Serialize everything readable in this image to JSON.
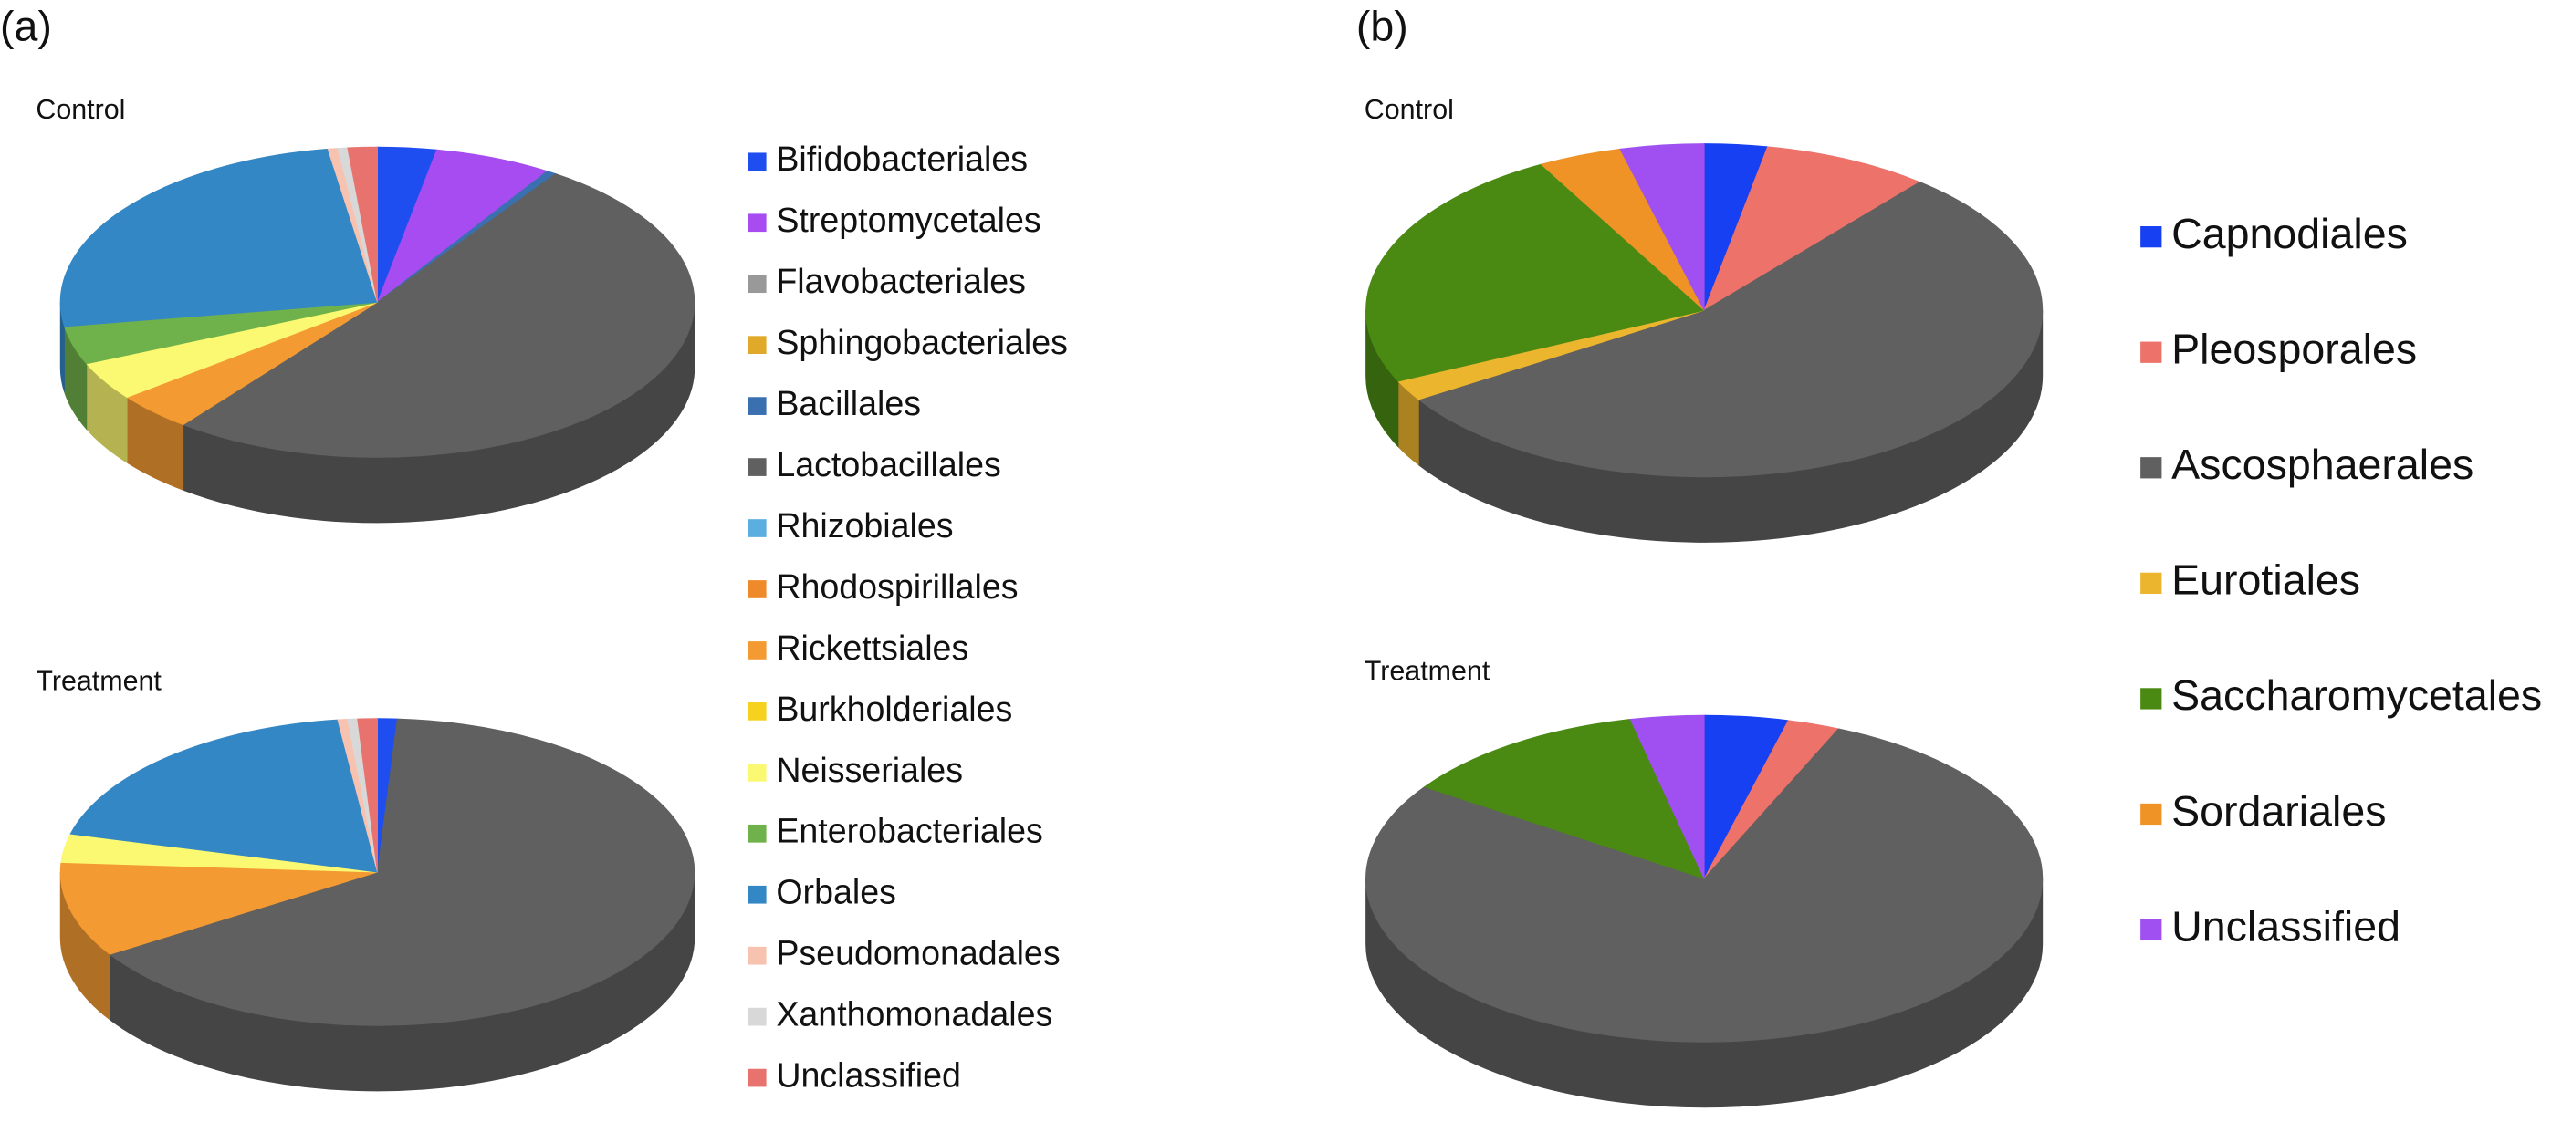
{
  "chart_data": [
    {
      "type": "pie",
      "panel_label": "(a)",
      "categories": [
        "Bifidobacteriales",
        "Streptomycetales",
        "Flavobacteriales",
        "Sphingobacteriales",
        "Bacillales",
        "Lactobacillales",
        "Rhizobiales",
        "Rhodospirillales",
        "Rickettsiales",
        "Burkholderiales",
        "Neisseriales",
        "Enterobacteriales",
        "Orbales",
        "Pseudomonadales",
        "Xanthomonadales",
        "Unclassified"
      ],
      "colors": [
        "#1f4ef0",
        "#a64cf0",
        "#999999",
        "#e0a92a",
        "#3a6fb0",
        "#606060",
        "#5aaee0",
        "#ef8a2a",
        "#f39a33",
        "#f5d21f",
        "#fbf871",
        "#6fb14a",
        "#3487c5",
        "#f7c3b0",
        "#d8d8d8",
        "#e8736e"
      ],
      "series": [
        {
          "name": "Control",
          "values": [
            3,
            6,
            0,
            0,
            0.5,
            51,
            0,
            0,
            4,
            0,
            4,
            4,
            25,
            0.5,
            0.5,
            1.5
          ]
        },
        {
          "name": "Treatment",
          "values": [
            1,
            0,
            0,
            0,
            0,
            65,
            0,
            0,
            10,
            0,
            3,
            0,
            19,
            0.5,
            0.5,
            1
          ]
        }
      ]
    },
    {
      "type": "pie",
      "panel_label": "(b)",
      "categories": [
        "Capnodiales",
        "Pleosporales",
        "Ascosphaerales",
        "Eurotiales",
        "Saccharomycetales",
        "Sordariales",
        "Unclassified"
      ],
      "colors": [
        "#1740f2",
        "#ec726a",
        "#606060",
        "#ecb52e",
        "#4a8a13",
        "#ef9327",
        "#a050f0"
      ],
      "series": [
        {
          "name": "Control",
          "values": [
            3,
            8,
            55,
            2,
            24,
            4,
            4
          ]
        },
        {
          "name": "Treatment",
          "values": [
            4,
            2.5,
            78,
            0,
            12,
            0,
            3.5
          ]
        }
      ]
    }
  ]
}
